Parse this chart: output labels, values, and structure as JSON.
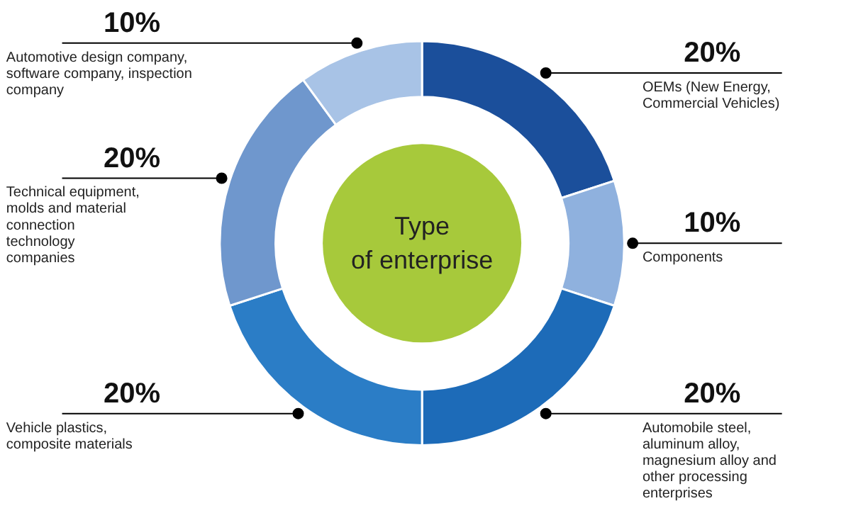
{
  "chart_data": {
    "type": "donut",
    "title": "Type\nof enterprise",
    "categories": [
      "OEMs (New Energy,\nCommercial Vehicles)",
      "Components",
      "Automobile steel,\naluminum alloy,\nmagnesium alloy and\nother processing\nenterprises",
      "Vehicle plastics,\ncomposite materials",
      "Technical equipment,\nmolds and material\nconnection\ntechnology\ncompanies",
      "Automotive design company,\nsoftware company, inspection\ncompany"
    ],
    "values": [
      20,
      10,
      20,
      20,
      20,
      10
    ],
    "value_labels": [
      "20%",
      "10%",
      "20%",
      "20%",
      "20%",
      "10%"
    ],
    "colors": [
      "#1b4f9b",
      "#8fb1de",
      "#1d6bb8",
      "#2b7dc6",
      "#6f97cd",
      "#a8c3e6"
    ]
  }
}
